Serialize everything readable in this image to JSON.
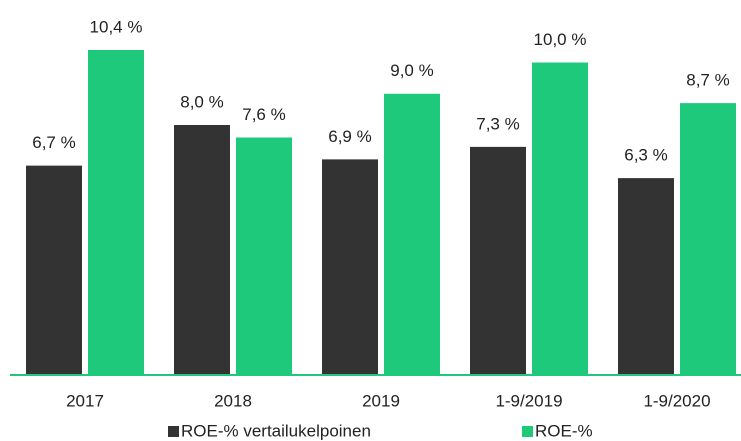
{
  "chart_data": {
    "type": "bar",
    "categories": [
      "2017",
      "2018",
      "2019",
      "1-9/2019",
      "1-9/2020"
    ],
    "series": [
      {
        "name": "ROE-% vertailukelpoinen",
        "color": "#333333",
        "values": [
          6.7,
          8.0,
          6.9,
          7.3,
          6.3
        ],
        "value_labels": [
          "6,7 %",
          "8,0 %",
          "6,9 %",
          "7,3 %",
          "6,3 %"
        ]
      },
      {
        "name": "ROE-%",
        "color": "#1fc97b",
        "values": [
          10.4,
          7.6,
          9.0,
          10.0,
          8.7
        ],
        "value_labels": [
          "10,4 %",
          "7,6 %",
          "9,0 %",
          "10,0 %",
          "8,7 %"
        ]
      }
    ],
    "ylim": [
      0,
      12
    ]
  }
}
